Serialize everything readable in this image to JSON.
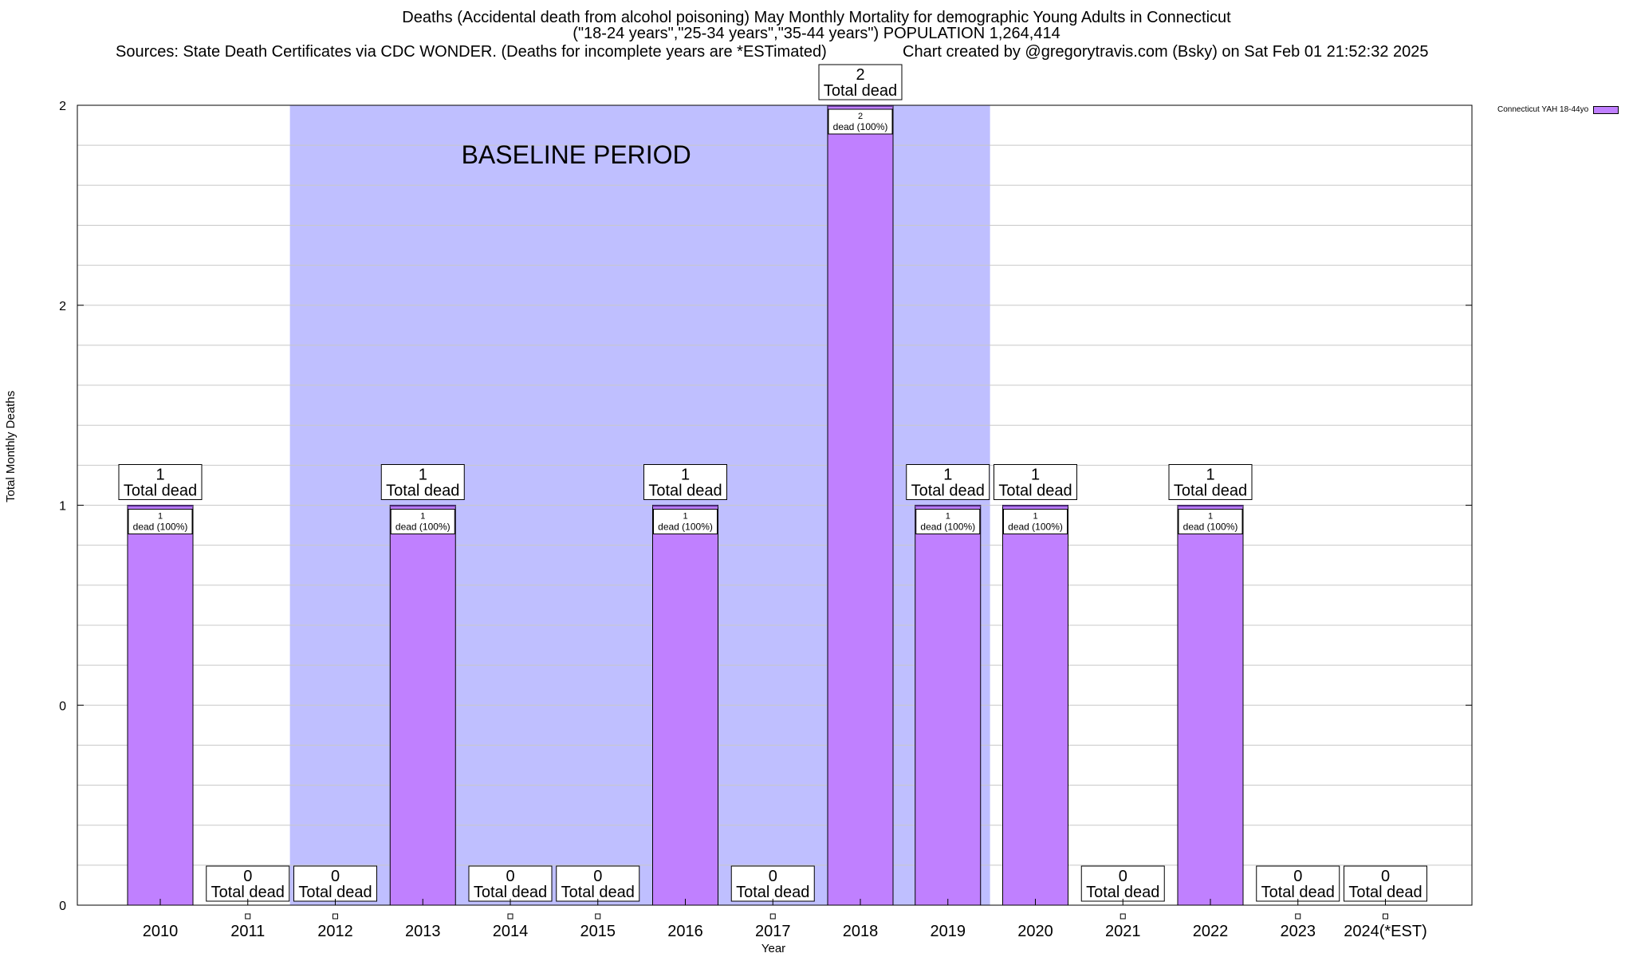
{
  "chart_data": {
    "type": "bar",
    "title_lines": [
      "Deaths (Accidental death from alcohol poisoning) May Monthly Mortality for demographic Young Adults in Connecticut",
      "(\"18-24 years\",\"25-34 years\",\"35-44 years\") POPULATION 1,264,414"
    ],
    "sources": "Sources: State Death Certificates via CDC WONDER. (Deaths for incomplete years are *ESTimated)",
    "credit": "Chart created by @gregorytravis.com (Bsky) on Sat Feb 01 21:52:32 2025",
    "xlabel": "Year",
    "ylabel": "Total Monthly Deaths",
    "ylim": [
      0,
      2
    ],
    "y_tick_labels": [
      "0",
      "0",
      "1",
      "2",
      "2"
    ],
    "categories": [
      "2010",
      "2011",
      "2012",
      "2013",
      "2014",
      "2015",
      "2016",
      "2017",
      "2018",
      "2019",
      "2020",
      "2021",
      "2022",
      "2023",
      "2024(*EST)"
    ],
    "series": [
      {
        "name": "Connecticut YAH 18-44yo",
        "values": [
          1,
          0,
          0,
          1,
          0,
          0,
          1,
          0,
          2,
          1,
          1,
          0,
          1,
          0,
          0
        ]
      }
    ],
    "total_label_suffix": "Total dead",
    "inner_label_suffix": "dead (100%)",
    "baseline": {
      "label": "BASELINE PERIOD",
      "start_category": "2012",
      "end_category": "2019"
    },
    "grid": true,
    "legend_position": "top-right"
  },
  "colors": {
    "bar": "#c080ff",
    "baseline": "#bfbfff",
    "grid": "#c8c8c8",
    "axis": "#000000"
  }
}
